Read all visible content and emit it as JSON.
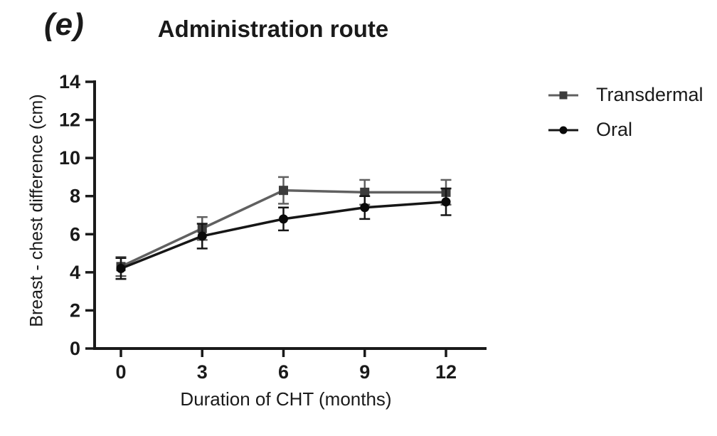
{
  "figure": {
    "background_color": "#ffffff",
    "text_color": "#1a1a1a"
  },
  "chart_data": {
    "type": "line",
    "panel_label": "(e)",
    "title": "Administration route",
    "xlabel": "Duration of CHT (months)",
    "ylabel": "Breast - chest difference (cm)",
    "x": [
      0,
      3,
      6,
      9,
      12
    ],
    "x_tick_labels": [
      "0",
      "3",
      "6",
      "9",
      "12"
    ],
    "y_ticks": [
      0,
      2,
      4,
      6,
      8,
      10,
      12,
      14
    ],
    "xlim": [
      0,
      13.5
    ],
    "ylim": [
      0,
      14
    ],
    "grid": false,
    "legend_position": "right-of-plot-top",
    "error_bars": "symmetric, capped",
    "series": [
      {
        "name": "Transdermal",
        "marker": "square",
        "color": "#606060",
        "marker_color": "#3c3c3c",
        "values": [
          4.3,
          6.3,
          8.3,
          8.2,
          8.2
        ],
        "errors": [
          0.5,
          0.6,
          0.7,
          0.65,
          0.65
        ]
      },
      {
        "name": "Oral",
        "marker": "circle",
        "color": "#161616",
        "marker_color": "#0a0a0a",
        "values": [
          4.2,
          5.9,
          6.8,
          7.4,
          7.7
        ],
        "errors": [
          0.55,
          0.65,
          0.6,
          0.6,
          0.7
        ]
      }
    ]
  }
}
